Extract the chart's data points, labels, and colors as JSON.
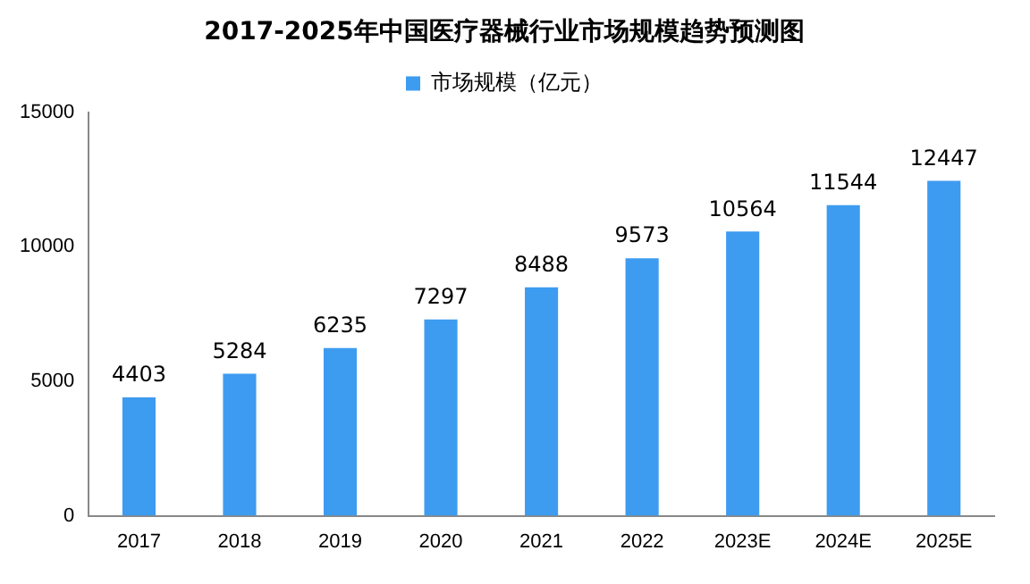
{
  "chart_data": {
    "type": "bar",
    "title": "2017-2025年中国医疗器械行业市场规模趋势预测图",
    "categories": [
      "2017",
      "2018",
      "2019",
      "2020",
      "2021",
      "2022",
      "2023E",
      "2024E",
      "2025E"
    ],
    "series": [
      {
        "name": "市场规模（亿元）",
        "color": "#3d9cf0",
        "values": [
          4403,
          5284,
          6235,
          7297,
          8488,
          9573,
          10564,
          11544,
          12447
        ]
      }
    ],
    "ylim": [
      0,
      15000
    ],
    "yticks": [
      0,
      5000,
      10000,
      15000
    ],
    "grid": false,
    "legend": "top",
    "data_labels": true
  }
}
